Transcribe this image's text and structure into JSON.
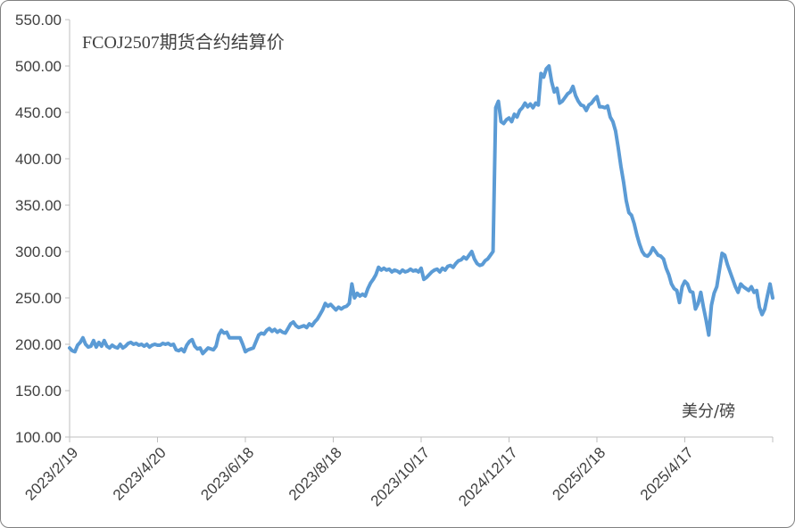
{
  "chart_data": {
    "type": "line",
    "title": "FCOJ2507期货合约结算价",
    "unit_label": "美分/磅",
    "xlabel": "",
    "ylabel": "",
    "ylim": [
      100,
      550
    ],
    "y_ticks": [
      "100.00",
      "150.00",
      "200.00",
      "250.00",
      "300.00",
      "350.00",
      "400.00",
      "450.00",
      "500.00",
      "550.00"
    ],
    "x_tick_labels": [
      "2023/2/19",
      "2023/4/20",
      "2023/6/18",
      "2023/8/18",
      "2023/10/17",
      "2024/12/17",
      "2025/2/18",
      "2025/4/17"
    ],
    "grid": false,
    "legend": "none",
    "line_color": "#5B9BD5",
    "series": [
      {
        "values": [
          196,
          193,
          192,
          199,
          202,
          207,
          200,
          197,
          198,
          204,
          197,
          202,
          198,
          204,
          198,
          196,
          199,
          197,
          196,
          200,
          196,
          198,
          201,
          202,
          200,
          201,
          199,
          200,
          198,
          200,
          197,
          199,
          200,
          199,
          199,
          201,
          200,
          201,
          199,
          200,
          194,
          193,
          195,
          192,
          199,
          203,
          205,
          198,
          195,
          196,
          190,
          193,
          196,
          195,
          194,
          198,
          210,
          215,
          212,
          213,
          207,
          207,
          207,
          207,
          207,
          200,
          192,
          194,
          195,
          196,
          203,
          210,
          212,
          211,
          215,
          217,
          214,
          216,
          213,
          215,
          213,
          212,
          217,
          222,
          224,
          220,
          218,
          219,
          220,
          218,
          222,
          220,
          224,
          227,
          232,
          237,
          244,
          241,
          243,
          240,
          237,
          240,
          238,
          240,
          241,
          244,
          265,
          250,
          255,
          252,
          254,
          252,
          260,
          266,
          270,
          275,
          283,
          280,
          282,
          280,
          281,
          278,
          280,
          279,
          277,
          280,
          278,
          279,
          281,
          279,
          280,
          278,
          282,
          270,
          272,
          275,
          278,
          280,
          281,
          278,
          282,
          280,
          284,
          285,
          283,
          287,
          290,
          291,
          294,
          292,
          296,
          300,
          292,
          287,
          285,
          286,
          290,
          292,
          296,
          300,
          455,
          462,
          440,
          438,
          442,
          444,
          440,
          448,
          445,
          452,
          455,
          460,
          456,
          459,
          455,
          460,
          458,
          492,
          488,
          497,
          500,
          483,
          472,
          476,
          460,
          462,
          466,
          470,
          472,
          478,
          468,
          462,
          458,
          457,
          452,
          458,
          460,
          464,
          467,
          456,
          456,
          455,
          457,
          445,
          440,
          430,
          412,
          392,
          375,
          355,
          342,
          339,
          330,
          318,
          308,
          300,
          296,
          295,
          298,
          304,
          300,
          296,
          295,
          292,
          282,
          275,
          265,
          260,
          258,
          245,
          262,
          268,
          265,
          257,
          256,
          238,
          244,
          256,
          240,
          226,
          210,
          242,
          255,
          262,
          280,
          298,
          296,
          286,
          278,
          270,
          262,
          256,
          265,
          262,
          260,
          258,
          262,
          256,
          258,
          240,
          232,
          238,
          252,
          265,
          250
        ]
      }
    ]
  }
}
